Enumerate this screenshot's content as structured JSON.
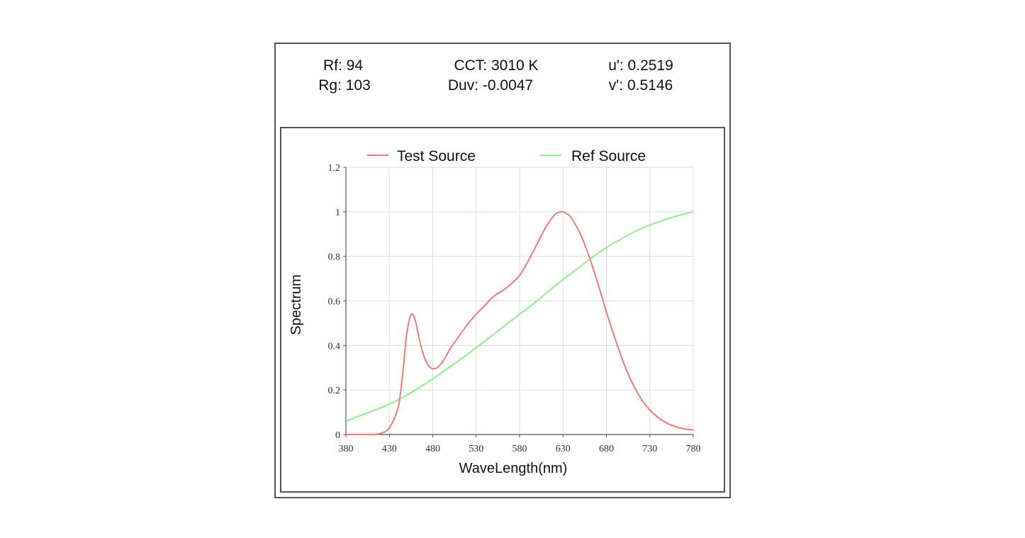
{
  "metrics": {
    "rf": "Rf: 94",
    "rg": "Rg: 103",
    "cct": "CCT: 3010 K",
    "duv": "Duv: -0.0047",
    "u_prime": "u': 0.2519",
    "v_prime": "v': 0.5146"
  },
  "colors": {
    "test_source": "#f07a7a",
    "ref_source": "#8ef08a",
    "grid": "#dddddd",
    "axis": "#555555"
  },
  "chart_data": {
    "type": "line",
    "xlabel": "WaveLength(nm)",
    "ylabel": "Spectrum",
    "xlim": [
      380,
      780
    ],
    "ylim": [
      0,
      1.2
    ],
    "xticks": [
      "380",
      "430",
      "480",
      "530",
      "580",
      "630",
      "680",
      "730",
      "780"
    ],
    "yticks": [
      "0",
      "0.2",
      "0.4",
      "0.6",
      "0.8",
      "1",
      "1.2"
    ],
    "grid": true,
    "legend_position": "top",
    "series": [
      {
        "name": "Test Source",
        "x": [
          380,
          400,
          410,
          420,
          430,
          440,
          445,
          450,
          454,
          457,
          460,
          465,
          470,
          475,
          480,
          485,
          490,
          495,
          500,
          510,
          520,
          530,
          540,
          550,
          560,
          570,
          580,
          590,
          600,
          610,
          620,
          625,
          630,
          635,
          640,
          650,
          660,
          670,
          680,
          690,
          700,
          710,
          720,
          730,
          740,
          750,
          760,
          770,
          780
        ],
        "y": [
          0.0,
          0.0,
          0.0,
          0.005,
          0.03,
          0.12,
          0.26,
          0.45,
          0.53,
          0.54,
          0.51,
          0.42,
          0.35,
          0.31,
          0.295,
          0.3,
          0.32,
          0.35,
          0.385,
          0.44,
          0.495,
          0.54,
          0.58,
          0.62,
          0.645,
          0.675,
          0.715,
          0.78,
          0.855,
          0.93,
          0.985,
          0.998,
          1.0,
          0.99,
          0.97,
          0.9,
          0.8,
          0.68,
          0.55,
          0.43,
          0.32,
          0.23,
          0.16,
          0.11,
          0.075,
          0.05,
          0.035,
          0.025,
          0.02
        ]
      },
      {
        "name": "Ref Source",
        "x": [
          380,
          400,
          420,
          440,
          460,
          480,
          500,
          520,
          540,
          560,
          580,
          600,
          620,
          640,
          660,
          680,
          700,
          720,
          740,
          760,
          780
        ],
        "y": [
          0.06,
          0.09,
          0.12,
          0.155,
          0.2,
          0.25,
          0.305,
          0.36,
          0.42,
          0.48,
          0.54,
          0.6,
          0.665,
          0.725,
          0.785,
          0.84,
          0.885,
          0.925,
          0.955,
          0.98,
          1.0
        ]
      }
    ]
  }
}
